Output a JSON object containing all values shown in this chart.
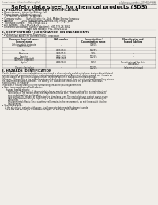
{
  "bg_color": "#f0ede8",
  "header_top_left": "Product name: Lithium Ion Battery Cell",
  "header_top_right_l1": "Reference number: 1990-009-00010",
  "header_top_right_l2": "Establishment / Revision: Dec.7.2018",
  "title": "Safety data sheet for chemical products (SDS)",
  "section1_title": "1. PRODUCT AND COMPANY IDENTIFICATION",
  "section1_lines": [
    " • Product name: Lithium Ion Battery Cell",
    " • Product code: Cylindrical-type cell",
    "     (JY-18650U, JY-18650L, JY-18650A)",
    " • Company name:      Sanyo Electric Co., Ltd., Mobile Energy Company",
    " • Address:            2001 Kamikoriyama, Sumoto-City, Hyogo, Japan",
    " • Telephone number:   +81-799-26-4111",
    " • Fax number:   +81-799-26-4120",
    " • Emergency telephone number (daytime): +81-799-26-3662",
    "                                   (Night and holiday): +81-799-26-4101"
  ],
  "section2_title": "2. COMPOSITION / INFORMATION ON INGREDIENTS",
  "section2_intro": " • Substance or preparation: Preparation",
  "section2_sub": "   • Information about the chemical nature of product",
  "table_col_headers": [
    "Common chemical name /\nGeneral name",
    "CAS number",
    "Concentration /\nConcentration range",
    "Classification and\nhazard labeling"
  ],
  "table_rows": [
    [
      "Lithium cobalt tantalate\n(LiMnCoO(Co))",
      "-",
      "30-60%",
      "-"
    ],
    [
      "Iron",
      "7439-89-6",
      "15-25%",
      "-"
    ],
    [
      "Aluminum",
      "7429-90-5",
      "2-8%",
      "-"
    ],
    [
      "Graphite\n(Metal in graphite I)\n(Al-Mo in graphite I)",
      "7782-42-5\n7782-44-0",
      "10-25%",
      "-"
    ],
    [
      "Copper",
      "7440-50-8",
      "5-15%",
      "Sensitization of the skin\ngroup No.2"
    ],
    [
      "Organic electrolyte",
      "-",
      "10-20%",
      "Inflammable liquid"
    ]
  ],
  "section3_title": "3. HAZARDS IDENTIFICATION",
  "section3_body": [
    "  For the battery cell, chemical substances are stored in a hermetically sealed metal case, designed to withstand",
    "temperature and pressure variations-contractions during normal use. As a result, during normal use, there is no",
    "physical danger of ignition or evaporation and therefore danger of hazardous materials leakage.",
    "  However, if exposed to a fire, added mechanical shocks, decomposed, short-circuit, under abnormal/any misuse,",
    "the gas vented cannot be operated. The battery cell case will be breached or the potential, hazardous",
    "materials may be released.",
    "  Moreover, if heated strongly by the surrounding fire, some gas may be emitted."
  ],
  "bullet_most": " • Most important hazard and effects:",
  "human_health_label": "      Human health effects:",
  "inhalation": "           Inhalation: The release of the electrolyte has an anesthesia action and stimulates a respiratory tract.",
  "skin_lines": [
    "           Skin contact: The release of the electrolyte stimulates a skin. The electrolyte skin contact causes a",
    "           sore and stimulation on the skin."
  ],
  "eye_lines": [
    "           Eye contact: The release of the electrolyte stimulates eyes. The electrolyte eye contact causes a sore",
    "           and stimulation on the eye. Especially, a substance that causes a strong inflammation of the eye is",
    "           contained."
  ],
  "env_lines": [
    "           Environmental effects: Since a battery cell remains in the environment, do not throw out it into the",
    "           environment."
  ],
  "bullet_specific": " • Specific hazards:",
  "specific_lines": [
    "      If the electrolyte contacts with water, it will generate detrimental hydrogen fluoride.",
    "      Since the seal electrolyte is inflammable liquid, do not bring close to fire."
  ]
}
